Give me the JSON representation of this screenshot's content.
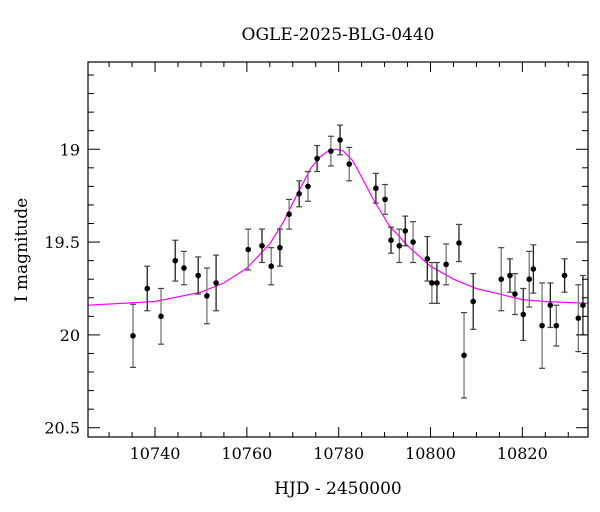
{
  "chart_data": {
    "type": "scatter",
    "title": "OGLE-2025-BLG-0440",
    "xlabel": "HJD - 2450000",
    "ylabel": "I magnitude",
    "xlim": [
      10725.4,
      10834.3
    ],
    "ylim": [
      20.55,
      18.53
    ],
    "y_inverted": true,
    "xticks": [
      10740,
      10760,
      10780,
      10800,
      10820
    ],
    "yticks": [
      19,
      19.5,
      20,
      20.5
    ],
    "ytick_labels": [
      "19",
      "19.5",
      "20",
      "20.5"
    ],
    "xtick_labels": [
      "10740",
      "10760",
      "10780",
      "10800",
      "10820"
    ],
    "grid": false,
    "colors": {
      "points": "#000000",
      "model": "#ff00ff"
    },
    "points": [
      [
        10735.2,
        20.005,
        0.17
      ],
      [
        10738.3,
        19.75,
        0.12
      ],
      [
        10741.3,
        19.9,
        0.15
      ],
      [
        10744.4,
        19.6,
        0.11
      ],
      [
        10746.3,
        19.64,
        0.09
      ],
      [
        10749.4,
        19.68,
        0.1
      ],
      [
        10751.3,
        19.79,
        0.15
      ],
      [
        10753.3,
        19.72,
        0.15
      ],
      [
        10760.3,
        19.54,
        0.11
      ],
      [
        10763.3,
        19.52,
        0.09
      ],
      [
        10765.3,
        19.63,
        0.1
      ],
      [
        10767.2,
        19.53,
        0.1
      ],
      [
        10769.2,
        19.35,
        0.08
      ],
      [
        10771.4,
        19.24,
        0.07
      ],
      [
        10773.3,
        19.2,
        0.08
      ],
      [
        10775.3,
        19.05,
        0.07
      ],
      [
        10778.3,
        19.01,
        0.08
      ],
      [
        10780.3,
        18.95,
        0.08
      ],
      [
        10782.3,
        19.08,
        0.09
      ],
      [
        10788.1,
        19.21,
        0.08
      ],
      [
        10790.1,
        19.27,
        0.08
      ],
      [
        10791.4,
        19.49,
        0.07
      ],
      [
        10793.2,
        19.52,
        0.09
      ],
      [
        10794.5,
        19.44,
        0.08
      ],
      [
        10796.2,
        19.5,
        0.11
      ],
      [
        10799.3,
        19.59,
        0.12
      ],
      [
        10800.3,
        19.72,
        0.11
      ],
      [
        10801.4,
        19.72,
        0.11
      ],
      [
        10803.4,
        19.62,
        0.11
      ],
      [
        10806.2,
        19.505,
        0.1
      ],
      [
        10807.3,
        20.11,
        0.23
      ],
      [
        10809.3,
        19.82,
        0.15
      ],
      [
        10815.4,
        19.7,
        0.17
      ],
      [
        10817.3,
        19.68,
        0.09
      ],
      [
        10818.4,
        19.78,
        0.11
      ],
      [
        10820.2,
        19.89,
        0.14
      ],
      [
        10821.5,
        19.7,
        0.15
      ],
      [
        10822.4,
        19.645,
        0.13
      ],
      [
        10824.3,
        19.95,
        0.23
      ],
      [
        10826.1,
        19.84,
        0.12
      ],
      [
        10827.4,
        19.95,
        0.11
      ],
      [
        10829.2,
        19.68,
        0.09
      ],
      [
        10832.2,
        19.91,
        0.18
      ],
      [
        10833.2,
        19.84,
        0.16
      ]
    ],
    "model": [
      [
        10725.4,
        19.84
      ],
      [
        10740,
        19.82
      ],
      [
        10750,
        19.77
      ],
      [
        10755,
        19.72
      ],
      [
        10760,
        19.64
      ],
      [
        10765,
        19.51
      ],
      [
        10768,
        19.39
      ],
      [
        10771,
        19.24
      ],
      [
        10774,
        19.1
      ],
      [
        10776,
        19.04
      ],
      [
        10778,
        19.005
      ],
      [
        10779.5,
        19.0
      ],
      [
        10781,
        19.01
      ],
      [
        10783,
        19.06
      ],
      [
        10785,
        19.15
      ],
      [
        10788,
        19.29
      ],
      [
        10791,
        19.41
      ],
      [
        10795,
        19.52
      ],
      [
        10800,
        19.63
      ],
      [
        10805,
        19.7
      ],
      [
        10810,
        19.75
      ],
      [
        10815,
        19.78
      ],
      [
        10820,
        19.81
      ],
      [
        10825,
        19.82
      ],
      [
        10834.3,
        19.83
      ]
    ]
  }
}
